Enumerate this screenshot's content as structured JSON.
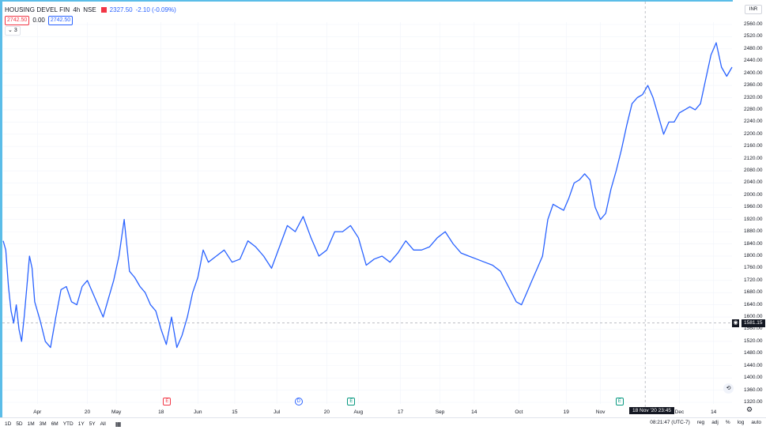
{
  "legend": {
    "symbol": "HOUSING DEVEL FIN",
    "interval": "4h",
    "exchange": "NSE",
    "last": "2327.50",
    "change": "-2.10 (-0.09%)",
    "bid": "2742.50",
    "spread": "0.00",
    "ask": "2742.50",
    "indicators_toggle": "3"
  },
  "axis": {
    "currency": "INR",
    "price_label": "1581.15",
    "time_label": "18 Nov '20  23:45"
  },
  "bottom_bar": {
    "ranges": [
      "1D",
      "5D",
      "1M",
      "3M",
      "6M",
      "YTD",
      "1Y",
      "5Y",
      "All"
    ],
    "clock": "08:21:47 (UTC-7)",
    "session": "reg",
    "adj": "adj",
    "percent": "%",
    "log": "log",
    "auto": "auto"
  },
  "events": [
    {
      "label": "E",
      "kind": "earnings-negative",
      "color": "#f23645",
      "near": "May 18"
    },
    {
      "label": "D",
      "kind": "dividend",
      "color": "#2962ff",
      "near": "Jul"
    },
    {
      "label": "E",
      "kind": "earnings",
      "color": "#089981",
      "near": "Aug"
    },
    {
      "label": "E",
      "kind": "earnings",
      "color": "#089981",
      "near": "Nov"
    }
  ],
  "chart_data": {
    "type": "line",
    "title": "",
    "xlabel": "",
    "ylabel": "",
    "ylim": [
      1300,
      2580
    ],
    "y_ticks": [
      2560,
      2520,
      2480,
      2440,
      2400,
      2360,
      2320,
      2280,
      2240,
      2200,
      2160,
      2120,
      2080,
      2040,
      2000,
      1960,
      1920,
      1880,
      1840,
      1800,
      1760,
      1720,
      1680,
      1640,
      1600,
      1560,
      1520,
      1480,
      1440,
      1400,
      1360,
      1320
    ],
    "x_tick_labels": [
      "Apr",
      "20",
      "May",
      "18",
      "Jun",
      "15",
      "Jul",
      "20",
      "Aug",
      "17",
      "Sep",
      "14",
      "Oct",
      "19",
      "Nov",
      "Dec",
      "14"
    ],
    "x_tick_dates": [
      "2020-04-01",
      "2020-04-20",
      "2020-05-01",
      "2020-05-18",
      "2020-06-01",
      "2020-06-15",
      "2020-07-01",
      "2020-07-20",
      "2020-08-01",
      "2020-08-17",
      "2020-09-01",
      "2020-09-14",
      "2020-10-01",
      "2020-10-19",
      "2020-11-01",
      "2020-12-01",
      "2020-12-14"
    ],
    "xlim": [
      "2020-03-19",
      "2020-12-21"
    ],
    "color": "#2962ff",
    "crosshair": {
      "price": 1581.15,
      "date": "2020-11-18"
    },
    "series": [
      {
        "x": [
          "2020-03-19",
          "2020-03-20",
          "2020-03-21",
          "2020-03-22",
          "2020-03-23",
          "2020-03-24",
          "2020-03-25",
          "2020-03-26",
          "2020-03-27",
          "2020-03-28",
          "2020-03-29",
          "2020-03-30",
          "2020-03-31",
          "2020-04-02",
          "2020-04-04",
          "2020-04-06",
          "2020-04-08",
          "2020-04-10",
          "2020-04-12",
          "2020-04-14",
          "2020-04-16",
          "2020-04-18",
          "2020-04-20",
          "2020-04-22",
          "2020-04-24",
          "2020-04-26",
          "2020-04-28",
          "2020-04-30",
          "2020-05-02",
          "2020-05-04",
          "2020-05-06",
          "2020-05-08",
          "2020-05-10",
          "2020-05-12",
          "2020-05-14",
          "2020-05-16",
          "2020-05-18",
          "2020-05-20",
          "2020-05-22",
          "2020-05-24",
          "2020-05-26",
          "2020-05-28",
          "2020-05-30",
          "2020-06-01",
          "2020-06-03",
          "2020-06-05",
          "2020-06-08",
          "2020-06-11",
          "2020-06-14",
          "2020-06-17",
          "2020-06-20",
          "2020-06-23",
          "2020-06-26",
          "2020-06-29",
          "2020-07-02",
          "2020-07-05",
          "2020-07-08",
          "2020-07-11",
          "2020-07-14",
          "2020-07-17",
          "2020-07-20",
          "2020-07-23",
          "2020-07-26",
          "2020-07-29",
          "2020-08-01",
          "2020-08-04",
          "2020-08-07",
          "2020-08-10",
          "2020-08-13",
          "2020-08-16",
          "2020-08-19",
          "2020-08-22",
          "2020-08-25",
          "2020-08-28",
          "2020-08-31",
          "2020-09-03",
          "2020-09-06",
          "2020-09-09",
          "2020-09-12",
          "2020-09-15",
          "2020-09-18",
          "2020-09-21",
          "2020-09-24",
          "2020-09-27",
          "2020-09-30",
          "2020-10-02",
          "2020-10-04",
          "2020-10-06",
          "2020-10-08",
          "2020-10-10",
          "2020-10-12",
          "2020-10-14",
          "2020-10-16",
          "2020-10-18",
          "2020-10-20",
          "2020-10-22",
          "2020-10-24",
          "2020-10-26",
          "2020-10-28",
          "2020-10-30",
          "2020-11-01",
          "2020-11-03",
          "2020-11-05",
          "2020-11-07",
          "2020-11-09",
          "2020-11-11",
          "2020-11-13",
          "2020-11-15",
          "2020-11-17",
          "2020-11-19",
          "2020-11-21",
          "2020-11-23",
          "2020-11-25",
          "2020-11-27",
          "2020-11-29",
          "2020-12-01",
          "2020-12-03",
          "2020-12-05",
          "2020-12-07",
          "2020-12-09",
          "2020-12-11",
          "2020-12-13",
          "2020-12-15",
          "2020-12-17",
          "2020-12-19",
          "2020-12-21"
        ],
        "y": [
          1850,
          1820,
          1700,
          1620,
          1580,
          1640,
          1560,
          1520,
          1600,
          1700,
          1800,
          1760,
          1650,
          1590,
          1520,
          1500,
          1600,
          1690,
          1700,
          1650,
          1640,
          1700,
          1720,
          1680,
          1640,
          1600,
          1660,
          1720,
          1800,
          1920,
          1750,
          1730,
          1700,
          1680,
          1640,
          1620,
          1560,
          1510,
          1600,
          1500,
          1540,
          1600,
          1680,
          1730,
          1820,
          1780,
          1800,
          1820,
          1780,
          1790,
          1850,
          1830,
          1800,
          1760,
          1830,
          1900,
          1880,
          1930,
          1860,
          1800,
          1820,
          1880,
          1880,
          1900,
          1860,
          1770,
          1790,
          1800,
          1780,
          1810,
          1850,
          1820,
          1820,
          1830,
          1860,
          1880,
          1840,
          1810,
          1800,
          1790,
          1780,
          1770,
          1750,
          1700,
          1650,
          1640,
          1680,
          1720,
          1760,
          1800,
          1920,
          1970,
          1960,
          1950,
          1990,
          2040,
          2050,
          2070,
          2050,
          1960,
          1920,
          1940,
          2020,
          2080,
          2150,
          2230,
          2300,
          2320,
          2330,
          2360,
          2320,
          2260,
          2200,
          2240,
          2240,
          2270,
          2280,
          2290,
          2280,
          2300,
          2380,
          2460,
          2500,
          2420,
          2390,
          2420
        ]
      }
    ]
  }
}
